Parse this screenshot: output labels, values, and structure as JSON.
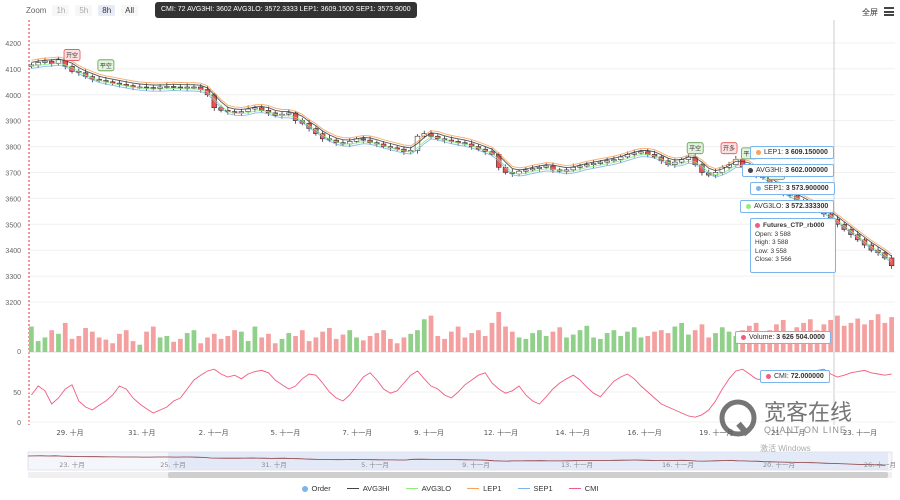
{
  "toolbar": {
    "zoom_label": "Zoom",
    "zoom_buttons": [
      "1h",
      "5h",
      "8h",
      "All"
    ],
    "zoom_active": "8h",
    "fullscreen_label": "全屏"
  },
  "top_tooltip": "CMI: 72 AVG3HI: 3602 AVG3LO: 3572.3333 LEP1: 3609.1500 SEP1: 3573.9000",
  "tooltips": {
    "lep1": {
      "label": "LEP1:",
      "value": "3 609.150000",
      "color": "#f7a35c"
    },
    "avg3hi": {
      "label": "AVG3HI:",
      "value": "3 602.000000",
      "color": "#434348"
    },
    "sep1": {
      "label": "SEP1:",
      "value": "3 573.900000",
      "color": "#7cb5ec"
    },
    "avg3lo": {
      "label": "AVG3LO:",
      "value": "3 572.333300",
      "color": "#90ed7d"
    },
    "ohlc": {
      "name": "Futures_CTP_rb000",
      "open": "Open: 3 588",
      "high": "High: 3 588",
      "low": "Low: 3 558",
      "close": "Close: 3 566"
    },
    "volume": {
      "label": "Volume:",
      "value": "3 626 504.0000",
      "color": "#f15c80"
    },
    "cmi": {
      "label": "CMI:",
      "value": "72.000000",
      "color": "#f15c80"
    }
  },
  "legend": [
    {
      "name": "Order",
      "color": "#7cb5ec",
      "kind": "dot"
    },
    {
      "name": "AVG3HI",
      "color": "#434348",
      "kind": "line"
    },
    {
      "name": "AVG3LO",
      "color": "#90ed7d",
      "kind": "line"
    },
    {
      "name": "LEP1",
      "color": "#f7a35c",
      "kind": "line"
    },
    {
      "name": "SEP1",
      "color": "#7cb5ec",
      "kind": "line"
    },
    {
      "name": "CMI",
      "color": "#f15c80",
      "kind": "line"
    }
  ],
  "watermark": {
    "cn": "宽客在线",
    "en": "QUANT ON LINE",
    "note": "激活 Windows"
  },
  "chart_data": {
    "type": "candlestick",
    "price_axis": {
      "ticks": [
        4200,
        4100,
        4000,
        3900,
        3800,
        3700,
        3600,
        3500,
        3400,
        3300,
        3200
      ],
      "ylim": [
        3200,
        4250
      ]
    },
    "volume_axis": {
      "ticks": [
        0
      ]
    },
    "cmi_axis": {
      "ticks": [
        50,
        0
      ],
      "ylim": [
        0,
        100
      ]
    },
    "x_ticks": [
      "29. 十月",
      "31. 十月",
      "2. 十一月",
      "5. 十一月",
      "7. 十一月",
      "9. 十一月",
      "12. 十一月",
      "14. 十一月",
      "16. 十一月",
      "19. 十一月",
      "21. 十一月",
      "23. 十一月"
    ],
    "navigator_ticks": [
      "23. 十月",
      "25. 十月",
      "31. 十月",
      "5. 十一月",
      "9. 十一月",
      "13. 十一月",
      "16. 十一月",
      "20. 十一月",
      "26. 十一月"
    ],
    "signals": [
      {
        "label": "开空",
        "type": "sell",
        "index": 6
      },
      {
        "label": "平空",
        "type": "buy",
        "index": 11
      },
      {
        "label": "平空",
        "type": "buy",
        "index": 98
      },
      {
        "label": "开多",
        "type": "sell",
        "index": 103
      },
      {
        "label": "平多",
        "type": "buy",
        "index": 106
      },
      {
        "label": "开空",
        "type": "buy",
        "index": 110
      }
    ],
    "close": [
      4115,
      4125,
      4130,
      4120,
      4135,
      4110,
      4090,
      4085,
      4070,
      4060,
      4055,
      4050,
      4045,
      4040,
      4035,
      4030,
      4030,
      4028,
      4025,
      4030,
      4032,
      4030,
      4026,
      4030,
      4030,
      4020,
      4000,
      3950,
      3940,
      3935,
      3930,
      3935,
      3945,
      3950,
      3940,
      3930,
      3920,
      3925,
      3930,
      3900,
      3890,
      3870,
      3850,
      3830,
      3825,
      3815,
      3810,
      3820,
      3830,
      3825,
      3815,
      3810,
      3800,
      3795,
      3790,
      3780,
      3785,
      3840,
      3850,
      3840,
      3830,
      3825,
      3820,
      3815,
      3810,
      3800,
      3790,
      3780,
      3770,
      3720,
      3700,
      3695,
      3705,
      3710,
      3715,
      3720,
      3725,
      3710,
      3705,
      3710,
      3720,
      3725,
      3730,
      3735,
      3740,
      3745,
      3750,
      3760,
      3770,
      3775,
      3780,
      3770,
      3760,
      3745,
      3730,
      3740,
      3750,
      3760,
      3730,
      3700,
      3690,
      3700,
      3720,
      3730,
      3750,
      3720,
      3710,
      3690,
      3680,
      3650,
      3630,
      3620,
      3610,
      3590,
      3580,
      3566,
      3560,
      3540,
      3520,
      3500,
      3480,
      3460,
      3440,
      3420,
      3400,
      3390,
      3370,
      3340
    ],
    "volume": [
      35,
      15,
      20,
      30,
      25,
      40,
      18,
      22,
      33,
      28,
      20,
      17,
      12,
      25,
      30,
      15,
      10,
      28,
      35,
      20,
      22,
      14,
      18,
      26,
      30,
      12,
      20,
      25,
      18,
      22,
      30,
      28,
      15,
      35,
      20,
      25,
      12,
      18,
      26,
      22,
      30,
      15,
      20,
      28,
      33,
      18,
      24,
      30,
      20,
      16,
      22,
      26,
      30,
      18,
      12,
      20,
      25,
      30,
      45,
      50,
      22,
      18,
      28,
      35,
      20,
      26,
      30,
      22,
      40,
      55,
      35,
      28,
      20,
      18,
      26,
      30,
      22,
      28,
      34,
      20,
      24,
      30,
      36,
      20,
      18,
      26,
      30,
      22,
      28,
      34,
      20,
      22,
      28,
      30,
      26,
      35,
      40,
      24,
      30,
      38,
      20,
      26,
      34,
      28,
      22,
      30,
      36,
      40,
      26,
      30,
      38,
      44,
      28,
      34,
      40,
      45,
      30,
      38,
      44,
      50,
      36,
      40,
      46,
      38,
      44,
      52,
      40,
      48
    ],
    "cmi": [
      45,
      60,
      52,
      30,
      40,
      55,
      62,
      35,
      25,
      20,
      28,
      35,
      45,
      60,
      55,
      40,
      30,
      22,
      15,
      20,
      25,
      35,
      40,
      55,
      70,
      78,
      85,
      88,
      80,
      75,
      78,
      72,
      80,
      84,
      86,
      82,
      70,
      62,
      55,
      60,
      72,
      80,
      78,
      65,
      50,
      40,
      35,
      45,
      60,
      75,
      82,
      70,
      55,
      48,
      52,
      65,
      78,
      85,
      72,
      60,
      55,
      45,
      40,
      50,
      62,
      70,
      78,
      82,
      65,
      55,
      48,
      52,
      60,
      45,
      35,
      30,
      42,
      55,
      65,
      72,
      78,
      70,
      58,
      48,
      42,
      55,
      68,
      75,
      80,
      72,
      60,
      50,
      40,
      30,
      25,
      20,
      15,
      10,
      8,
      12,
      20,
      35,
      55,
      72,
      85,
      88,
      80,
      72,
      70,
      75,
      80,
      85,
      82,
      80,
      78,
      84,
      86,
      88,
      80,
      75,
      78,
      82,
      84,
      86,
      82,
      80,
      78,
      80
    ]
  }
}
